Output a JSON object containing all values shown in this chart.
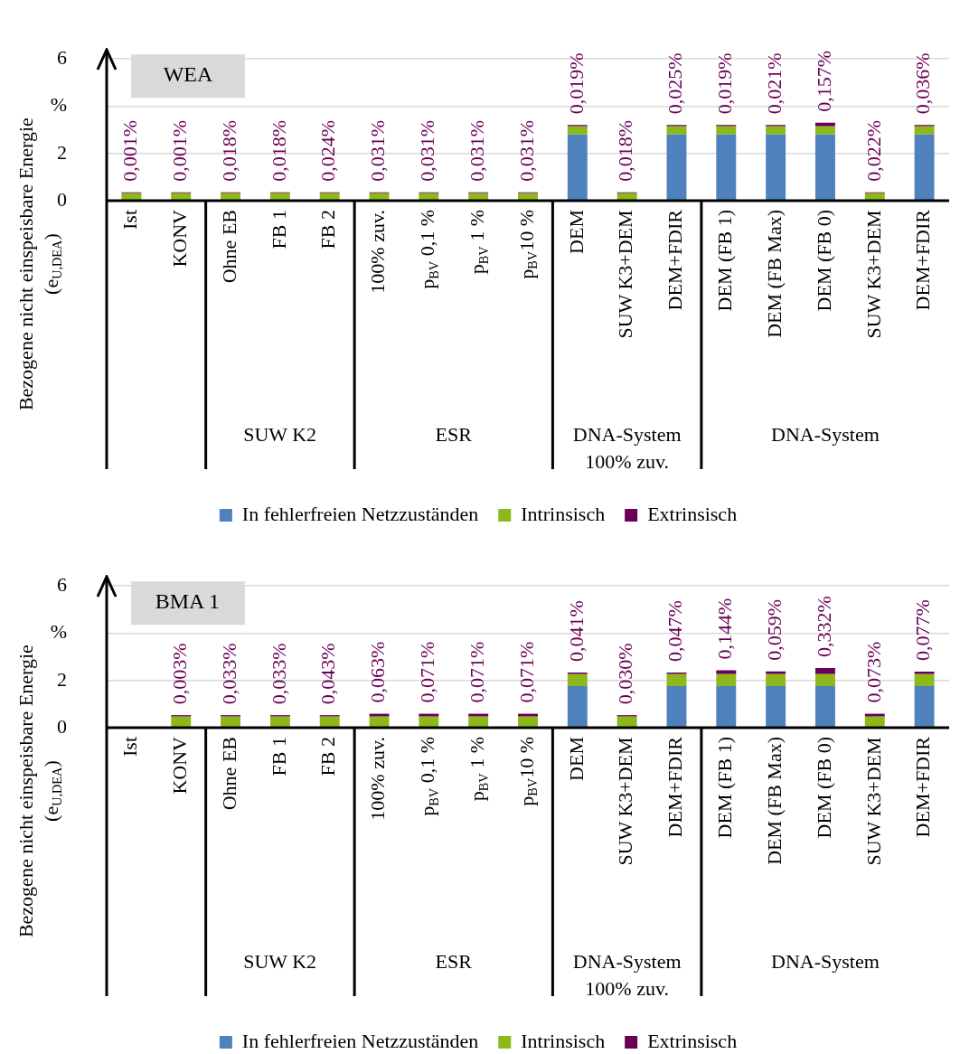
{
  "chart_data": [
    {
      "type": "bar",
      "title": "WEA",
      "ylabel": "Bezogene nicht einspeisbare Energie\n(e$_{U,DEA}$)",
      "categories": [
        "Ist",
        "KONV",
        "Ohne EB",
        "FB 1",
        "FB 2",
        "100% zuv.",
        "p$_{BV}$ 0,1 %",
        "p$_{BV}$ 1 %",
        "p$_{BV}$10 %",
        "DEM",
        "SUW K3+DEM",
        "DEM+FDIR",
        "DEM (FB 1)",
        "DEM (FB Max)",
        "DEM (FB 0)",
        "SUW K3+DEM",
        "DEM+FDIR"
      ],
      "series": [
        {
          "name": "In fehlerfreien Netzzuständen",
          "color": "#4f81bd",
          "values": [
            0,
            0,
            0,
            0,
            0,
            0,
            0,
            0,
            0,
            2.8,
            0,
            2.8,
            2.8,
            2.8,
            2.8,
            0,
            2.8
          ]
        },
        {
          "name": "Intrinsisch",
          "color": "#8cb919",
          "values": [
            0.32,
            0.32,
            0.32,
            0.32,
            0.32,
            0.32,
            0.32,
            0.32,
            0.32,
            0.35,
            0.32,
            0.35,
            0.35,
            0.35,
            0.35,
            0.32,
            0.35
          ]
        },
        {
          "name": "Extrinsisch",
          "color": "#6b0057",
          "values": [
            0.03,
            0.03,
            0.03,
            0.03,
            0.03,
            0.03,
            0.03,
            0.03,
            0.03,
            0.05,
            0.03,
            0.05,
            0.05,
            0.05,
            0.15,
            0.03,
            0.05
          ]
        }
      ],
      "stacked": true,
      "ylim": [
        0,
        6
      ],
      "yticks": [
        0,
        2,
        {
          "value": 4,
          "label": "%"
        },
        6
      ],
      "grid": "y",
      "legend": "bottom",
      "annotations": [
        "SUW K2",
        "ESR",
        "DNA-System\n100% zuv.",
        "DNA-System",
        {
          "text": "0,001%",
          "x": "Ist",
          "y": 0.35
        },
        {
          "text": "0,001%",
          "x": "KONV",
          "y": 0.35
        },
        {
          "text": "0,018%",
          "x": "Ohne EB",
          "y": 0.35
        },
        {
          "text": "0,018%",
          "x": "FB 1",
          "y": 0.35
        },
        {
          "text": "0,024%",
          "x": "FB 2",
          "y": 0.35
        },
        {
          "text": "0,031%",
          "x": "100% zuv.",
          "y": 0.35
        },
        {
          "text": "0,031%",
          "x": "p$_{BV}$ 0,1 %",
          "y": 0.35
        },
        {
          "text": "0,031%",
          "x": "p$_{BV}$ 1 %",
          "y": 0.35
        },
        {
          "text": "0,031%",
          "x": "p$_{BV}$10 %",
          "y": 0.35
        },
        {
          "text": "0,019%",
          "x": "DEM",
          "y": 3.2
        },
        {
          "text": "0,018%",
          "x": "SUW K3+DEM",
          "y": 0.35
        },
        {
          "text": "0,025%",
          "x": "DEM+FDIR",
          "y": 3.2
        },
        {
          "text": "0,019%",
          "x": "DEM (FB 1)",
          "y": 3.2
        },
        {
          "text": "0,021%",
          "x": "DEM (FB Max)",
          "y": 3.2
        },
        {
          "text": "0,157%",
          "x": "DEM (FB 0)",
          "y": 3.3
        },
        "0,022%",
        "0,036%"
      ]
    },
    {
      "type": "bar",
      "title": "BMA 1",
      "ylabel": "Bezogene nicht einspeisbare Energie\n(e$_{U,DEA}$)",
      "categories": [
        "Ist",
        "KONV",
        "Ohne EB",
        "FB 1",
        "FB 2",
        "100% zuv.",
        "p$_{BV}$ 0,1 %",
        "p$_{BV}$ 1 %",
        "p$_{BV}$10 %",
        "DEM",
        "SUW K3+DEM",
        "DEM+FDIR",
        "DEM (FB 1)",
        "DEM (FB Max)",
        "DEM (FB 0)",
        "SUW K3+DEM",
        "DEM+FDIR"
      ],
      "series": [
        {
          "name": "In fehlerfreien Netzzuständen",
          "color": "#4f81bd",
          "values": [
            0,
            0,
            0,
            0,
            0,
            0,
            0,
            0,
            0,
            1.76,
            0,
            1.76,
            1.76,
            1.76,
            1.76,
            0,
            1.76
          ]
        },
        {
          "name": "Intrinsisch",
          "color": "#8cb919",
          "values": [
            0,
            0.47,
            0.47,
            0.47,
            0.47,
            0.47,
            0.47,
            0.47,
            0.47,
            0.51,
            0.47,
            0.51,
            0.51,
            0.51,
            0.51,
            0.47,
            0.51
          ]
        },
        {
          "name": "Extrinsisch",
          "color": "#6b0057",
          "values": [
            0,
            0.06,
            0.06,
            0.06,
            0.06,
            0.12,
            0.12,
            0.12,
            0.12,
            0.06,
            0.06,
            0.06,
            0.16,
            0.11,
            0.26,
            0.12,
            0.1
          ]
        }
      ],
      "stacked": true,
      "ylim": [
        0,
        6
      ],
      "yticks": [
        0,
        2,
        {
          "value": 4,
          "label": "%"
        },
        6
      ],
      "grid": "y",
      "legend": "bottom",
      "annotations": [
        "SUW K2",
        "ESR",
        "DNA-System\n100% zuv.",
        "DNA-System",
        {
          "text": "0,003%",
          "x": "KONV",
          "y": 0.53
        },
        {
          "text": "0,033%",
          "x": "Ohne EB",
          "y": 0.53
        },
        {
          "text": "0,033%",
          "x": "FB 1",
          "y": 0.53
        },
        {
          "text": "0,043%",
          "x": "FB 2",
          "y": 0.53
        },
        {
          "text": "0,063%",
          "x": "100% zuv.",
          "y": 0.59
        },
        {
          "text": "0,071%",
          "x": "p$_{BV}$ 0,1 %",
          "y": 0.59
        },
        {
          "text": "0,071%",
          "x": "p$_{BV}$ 1 %",
          "y": 0.59
        },
        {
          "text": "0,071%",
          "x": "p$_{BV}$10 %",
          "y": 0.59
        },
        {
          "text": "0,041%",
          "x": "DEM",
          "y": 2.33
        },
        {
          "text": "0,030%",
          "x": "SUW K3+DEM",
          "y": 0.53
        },
        {
          "text": "0,047%",
          "x": "DEM+FDIR",
          "y": 2.33
        },
        {
          "text": "0,144%",
          "x": "DEM (FB 1)",
          "y": 2.43
        },
        {
          "text": "0,059%",
          "x": "DEM (FB Max)",
          "y": 2.38
        },
        {
          "text": "0,332%",
          "x": "DEM (FB 0)",
          "y": 2.53
        },
        "0,073%",
        "0,077%"
      ]
    }
  ]
}
